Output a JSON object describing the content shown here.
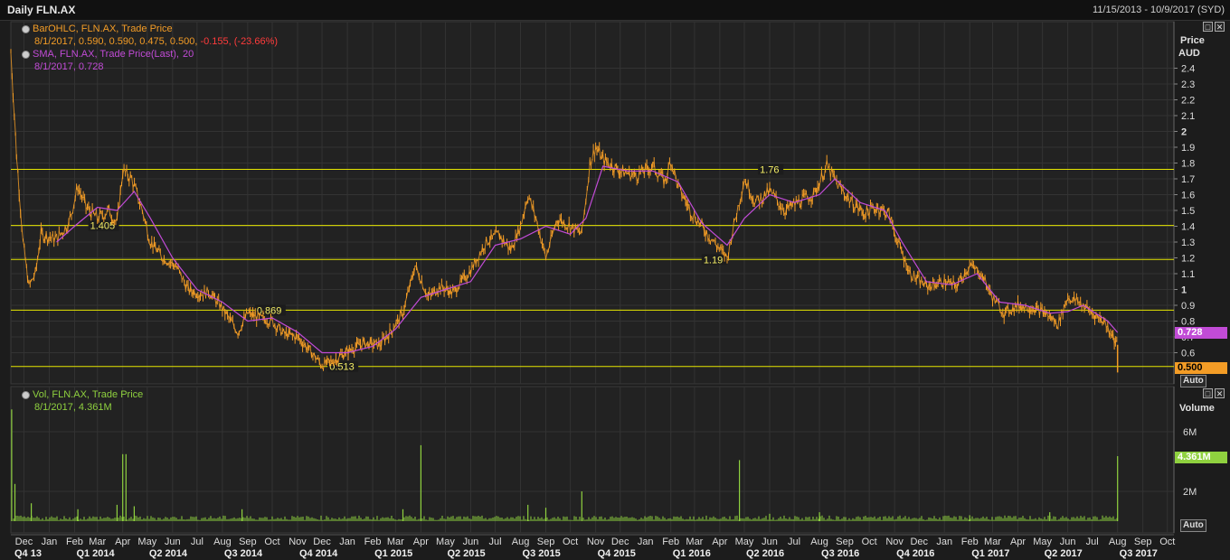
{
  "window": {
    "title": "Daily FLN.AX",
    "date_range": "11/15/2013 - 10/9/2017 (SYD)"
  },
  "legend_price": {
    "bar_title": "BarOHLC, FLN.AX, Trade Price",
    "bar_values": "8/1/2017, 0.590, 0.590, 0.475, 0.500,",
    "bar_change": "-0.155, (-23.66%)",
    "sma_title": "SMA, FLN.AX, Trade Price(Last),",
    "sma_period": "20",
    "sma_values": "8/1/2017, 0.728"
  },
  "legend_volume": {
    "title": "Vol, FLN.AX, Trade Price",
    "values": "8/1/2017, 4.361M"
  },
  "axes": {
    "price_title": "Price",
    "price_unit": "AUD",
    "volume_title": "Volume",
    "auto_label": "Auto"
  },
  "tags": {
    "sma_last": "0.728",
    "price_last": "0.500",
    "volume_last": "4.361M"
  },
  "colors": {
    "price": "#f39c26",
    "sma": "#c14bd6",
    "hline": "#e6e600",
    "volume": "#8fd13f",
    "background": "#1c1c1c",
    "grid": "#333333"
  },
  "chart_data": [
    {
      "type": "line",
      "title": "Daily FLN.AX",
      "x_range": [
        "2013-11-15",
        "2017-10-09"
      ],
      "ylabel": "Price AUD",
      "ylim": [
        0.5,
        2.5
      ],
      "y_ticks": [
        0.6,
        0.7,
        0.8,
        0.9,
        1,
        1.1,
        1.2,
        1.3,
        1.4,
        1.5,
        1.6,
        1.7,
        1.8,
        1.9,
        2,
        2.1,
        2.2,
        2.3,
        2.4
      ],
      "series": [
        {
          "name": "BarOHLC, FLN.AX, Trade Price",
          "points": [
            [
              "2013-11-15",
              2.5
            ],
            [
              "2013-11-22",
              1.85
            ],
            [
              "2013-11-30",
              1.3
            ],
            [
              "2013-12-07",
              1.02
            ],
            [
              "2013-12-15",
              1.1
            ],
            [
              "2013-12-22",
              1.35
            ],
            [
              "2014-01-10",
              1.32
            ],
            [
              "2014-01-25",
              1.42
            ],
            [
              "2014-02-05",
              1.65
            ],
            [
              "2014-02-15",
              1.52
            ],
            [
              "2014-03-01",
              1.45
            ],
            [
              "2014-03-15",
              1.5
            ],
            [
              "2014-03-25",
              1.42
            ],
            [
              "2014-04-01",
              1.75
            ],
            [
              "2014-04-12",
              1.7
            ],
            [
              "2014-04-25",
              1.5
            ],
            [
              "2014-05-05",
              1.3
            ],
            [
              "2014-05-20",
              1.2
            ],
            [
              "2014-06-05",
              1.15
            ],
            [
              "2014-06-20",
              1.0
            ],
            [
              "2014-07-05",
              0.97
            ],
            [
              "2014-07-15",
              0.99
            ],
            [
              "2014-08-01",
              0.88
            ],
            [
              "2014-08-20",
              0.73
            ],
            [
              "2014-09-01",
              0.85
            ],
            [
              "2014-09-15",
              0.82
            ],
            [
              "2014-10-01",
              0.8
            ],
            [
              "2014-10-15",
              0.72
            ],
            [
              "2014-11-01",
              0.7
            ],
            [
              "2014-11-15",
              0.62
            ],
            [
              "2014-12-01",
              0.52
            ],
            [
              "2014-12-15",
              0.55
            ],
            [
              "2015-01-05",
              0.62
            ],
            [
              "2015-01-20",
              0.66
            ],
            [
              "2015-02-10",
              0.65
            ],
            [
              "2015-02-25",
              0.75
            ],
            [
              "2015-03-10",
              0.85
            ],
            [
              "2015-03-25",
              1.15
            ],
            [
              "2015-04-10",
              0.95
            ],
            [
              "2015-04-25",
              1.02
            ],
            [
              "2015-05-10",
              0.98
            ],
            [
              "2015-06-01",
              1.12
            ],
            [
              "2015-06-20",
              1.3
            ],
            [
              "2015-07-05",
              1.35
            ],
            [
              "2015-07-20",
              1.25
            ],
            [
              "2015-08-01",
              1.4
            ],
            [
              "2015-08-10",
              1.6
            ],
            [
              "2015-08-20",
              1.45
            ],
            [
              "2015-09-01",
              1.2
            ],
            [
              "2015-09-15",
              1.45
            ],
            [
              "2015-10-01",
              1.4
            ],
            [
              "2015-10-15",
              1.35
            ],
            [
              "2015-10-25",
              1.8
            ],
            [
              "2015-11-01",
              1.9
            ],
            [
              "2015-11-10",
              1.82
            ],
            [
              "2015-12-01",
              1.75
            ],
            [
              "2015-12-20",
              1.72
            ],
            [
              "2016-01-10",
              1.78
            ],
            [
              "2016-01-25",
              1.68
            ],
            [
              "2016-02-01",
              1.82
            ],
            [
              "2016-02-10",
              1.65
            ],
            [
              "2016-02-25",
              1.5
            ],
            [
              "2016-03-10",
              1.4
            ],
            [
              "2016-03-25",
              1.3
            ],
            [
              "2016-04-10",
              1.2
            ],
            [
              "2016-04-20",
              1.45
            ],
            [
              "2016-05-01",
              1.7
            ],
            [
              "2016-05-15",
              1.55
            ],
            [
              "2016-06-01",
              1.62
            ],
            [
              "2016-06-20",
              1.5
            ],
            [
              "2016-07-05",
              1.55
            ],
            [
              "2016-07-25",
              1.6
            ],
            [
              "2016-08-10",
              1.78
            ],
            [
              "2016-08-25",
              1.65
            ],
            [
              "2016-09-10",
              1.55
            ],
            [
              "2016-09-25",
              1.48
            ],
            [
              "2016-10-10",
              1.52
            ],
            [
              "2016-10-25",
              1.48
            ],
            [
              "2016-11-05",
              1.3
            ],
            [
              "2016-11-20",
              1.1
            ],
            [
              "2016-12-10",
              1.02
            ],
            [
              "2017-01-01",
              1.05
            ],
            [
              "2017-01-15",
              1.02
            ],
            [
              "2017-02-01",
              1.15
            ],
            [
              "2017-02-15",
              1.1
            ],
            [
              "2017-03-01",
              0.95
            ],
            [
              "2017-03-15",
              0.85
            ],
            [
              "2017-04-01",
              0.9
            ],
            [
              "2017-04-20",
              0.88
            ],
            [
              "2017-05-05",
              0.85
            ],
            [
              "2017-05-20",
              0.78
            ],
            [
              "2017-06-01",
              0.95
            ],
            [
              "2017-06-15",
              0.92
            ],
            [
              "2017-07-01",
              0.85
            ],
            [
              "2017-07-15",
              0.8
            ],
            [
              "2017-07-25",
              0.72
            ],
            [
              "2017-07-31",
              0.65
            ],
            [
              "2017-08-01",
              0.5
            ]
          ]
        },
        {
          "name": "SMA, FLN.AX, Trade Price(Last), 20",
          "points": [
            [
              "2014-01-10",
              1.3
            ],
            [
              "2014-02-01",
              1.4
            ],
            [
              "2014-03-01",
              1.52
            ],
            [
              "2014-03-25",
              1.5
            ],
            [
              "2014-04-15",
              1.62
            ],
            [
              "2014-05-05",
              1.45
            ],
            [
              "2014-06-01",
              1.2
            ],
            [
              "2014-07-01",
              1.0
            ],
            [
              "2014-08-01",
              0.92
            ],
            [
              "2014-09-01",
              0.8
            ],
            [
              "2014-10-01",
              0.82
            ],
            [
              "2014-11-01",
              0.73
            ],
            [
              "2014-12-01",
              0.6
            ],
            [
              "2015-01-01",
              0.6
            ],
            [
              "2015-02-01",
              0.64
            ],
            [
              "2015-03-01",
              0.75
            ],
            [
              "2015-04-01",
              0.95
            ],
            [
              "2015-05-01",
              1.0
            ],
            [
              "2015-06-01",
              1.05
            ],
            [
              "2015-07-01",
              1.28
            ],
            [
              "2015-08-01",
              1.32
            ],
            [
              "2015-09-01",
              1.4
            ],
            [
              "2015-10-01",
              1.35
            ],
            [
              "2015-10-20",
              1.45
            ],
            [
              "2015-11-10",
              1.78
            ],
            [
              "2015-12-10",
              1.75
            ],
            [
              "2016-01-10",
              1.75
            ],
            [
              "2016-02-10",
              1.68
            ],
            [
              "2016-03-10",
              1.42
            ],
            [
              "2016-04-10",
              1.28
            ],
            [
              "2016-05-01",
              1.45
            ],
            [
              "2016-06-01",
              1.6
            ],
            [
              "2016-07-01",
              1.55
            ],
            [
              "2016-08-01",
              1.6
            ],
            [
              "2016-08-20",
              1.7
            ],
            [
              "2016-09-20",
              1.55
            ],
            [
              "2016-10-20",
              1.5
            ],
            [
              "2016-11-10",
              1.3
            ],
            [
              "2016-12-10",
              1.05
            ],
            [
              "2017-01-10",
              1.03
            ],
            [
              "2017-02-10",
              1.1
            ],
            [
              "2017-03-10",
              0.92
            ],
            [
              "2017-04-10",
              0.9
            ],
            [
              "2017-05-10",
              0.85
            ],
            [
              "2017-06-01",
              0.86
            ],
            [
              "2017-06-20",
              0.9
            ],
            [
              "2017-07-20",
              0.8
            ],
            [
              "2017-08-01",
              0.728
            ]
          ]
        }
      ],
      "horizontal_lines": [
        {
          "value": 1.76,
          "label": "1.76"
        },
        {
          "value": 1.405,
          "label": "1.405"
        },
        {
          "value": 1.19,
          "label": "1.19"
        },
        {
          "value": 0.869,
          "label": "0.869"
        },
        {
          "value": 0.513,
          "label": "0.513"
        }
      ],
      "tick_label_bold": [
        "1",
        "2"
      ]
    },
    {
      "type": "bar",
      "title": "Vol, FLN.AX, Trade Price",
      "ylabel": "Volume",
      "ylim": [
        0,
        8000000
      ],
      "y_ticks": [
        {
          "value": 2000000,
          "label": "2M"
        },
        {
          "value": 6000000,
          "label": "6M"
        }
      ],
      "spikes": [
        [
          "2013-11-16",
          7500000
        ],
        [
          "2013-11-20",
          2500000
        ],
        [
          "2013-12-10",
          1200000
        ],
        [
          "2014-02-05",
          800000
        ],
        [
          "2014-03-25",
          1100000
        ],
        [
          "2014-04-01",
          4500000
        ],
        [
          "2014-04-05",
          4500000
        ],
        [
          "2014-04-15",
          1000000
        ],
        [
          "2014-08-25",
          800000
        ],
        [
          "2015-03-10",
          800000
        ],
        [
          "2015-04-01",
          5100000
        ],
        [
          "2015-08-10",
          1100000
        ],
        [
          "2015-09-01",
          900000
        ],
        [
          "2015-10-15",
          2000000
        ],
        [
          "2016-04-25",
          4100000
        ],
        [
          "2016-06-01",
          500000
        ],
        [
          "2016-08-01",
          600000
        ],
        [
          "2017-02-01",
          400000
        ],
        [
          "2017-05-10",
          600000
        ],
        [
          "2017-08-01",
          4361000
        ]
      ],
      "baseline": 250000
    }
  ],
  "x_axis": {
    "months": [
      "Dec",
      "Jan",
      "Feb",
      "Mar",
      "Apr",
      "May",
      "Jun",
      "Jul",
      "Aug",
      "Sep",
      "Oct",
      "Nov",
      "Dec",
      "Jan",
      "Feb",
      "Mar",
      "Apr",
      "May",
      "Jun",
      "Jul",
      "Aug",
      "Sep",
      "Oct",
      "Nov",
      "Dec",
      "Jan",
      "Feb",
      "Mar",
      "Apr",
      "May",
      "Jun",
      "Jul",
      "Aug",
      "Sep",
      "Oct",
      "Nov",
      "Dec",
      "Jan",
      "Feb",
      "Mar",
      "Apr",
      "May",
      "Jun",
      "Jul",
      "Aug",
      "Sep",
      "Oct"
    ],
    "month_dates": [
      "2013-12-01",
      "2014-01-01",
      "2014-02-01",
      "2014-03-01",
      "2014-04-01",
      "2014-05-01",
      "2014-06-01",
      "2014-07-01",
      "2014-08-01",
      "2014-09-01",
      "2014-10-01",
      "2014-11-01",
      "2014-12-01",
      "2015-01-01",
      "2015-02-01",
      "2015-03-01",
      "2015-04-01",
      "2015-05-01",
      "2015-06-01",
      "2015-07-01",
      "2015-08-01",
      "2015-09-01",
      "2015-10-01",
      "2015-11-01",
      "2015-12-01",
      "2016-01-01",
      "2016-02-01",
      "2016-03-01",
      "2016-04-01",
      "2016-05-01",
      "2016-06-01",
      "2016-07-01",
      "2016-08-01",
      "2016-09-01",
      "2016-10-01",
      "2016-11-01",
      "2016-12-01",
      "2017-01-01",
      "2017-02-01",
      "2017-03-01",
      "2017-04-01",
      "2017-05-01",
      "2017-06-01",
      "2017-07-01",
      "2017-08-01",
      "2017-09-01",
      "2017-10-01"
    ],
    "quarters": [
      [
        "Q4 13",
        "2013-11-15"
      ],
      [
        "Q1 2014",
        "2014-02-01"
      ],
      [
        "Q2 2014",
        "2014-05-01"
      ],
      [
        "Q3 2014",
        "2014-08-01"
      ],
      [
        "Q4 2014",
        "2014-11-01"
      ],
      [
        "Q1 2015",
        "2015-02-01"
      ],
      [
        "Q2 2015",
        "2015-05-01"
      ],
      [
        "Q3 2015",
        "2015-08-01"
      ],
      [
        "Q4 2015",
        "2015-11-01"
      ],
      [
        "Q1 2016",
        "2016-02-01"
      ],
      [
        "Q2 2016",
        "2016-05-01"
      ],
      [
        "Q3 2016",
        "2016-08-01"
      ],
      [
        "Q4 2016",
        "2016-11-01"
      ],
      [
        "Q1 2017",
        "2017-02-01"
      ],
      [
        "Q2 2017",
        "2017-05-01"
      ],
      [
        "Q3 2017",
        "2017-08-01"
      ]
    ]
  }
}
